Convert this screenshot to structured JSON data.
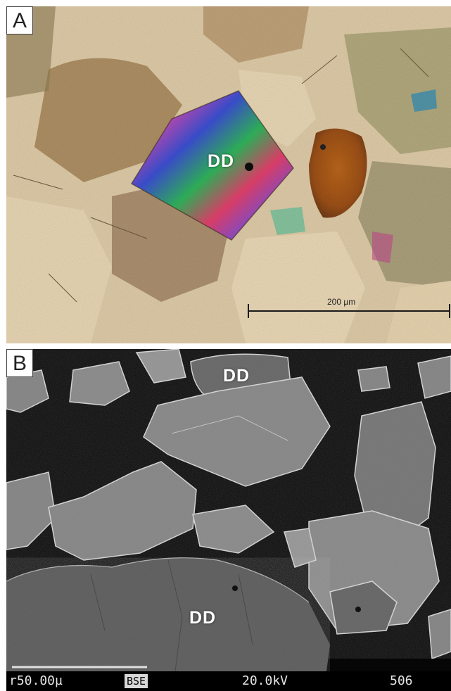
{
  "panel_a": {
    "label": "A",
    "grain_label": "DD",
    "scale_bar_text": "200 µm"
  },
  "panel_b": {
    "label": "B",
    "grain_labels": [
      "DD",
      "DD"
    ],
    "footer": {
      "scale": "r50.00µ",
      "mode": "BSE",
      "voltage": "20.0kV",
      "number": "506"
    }
  }
}
